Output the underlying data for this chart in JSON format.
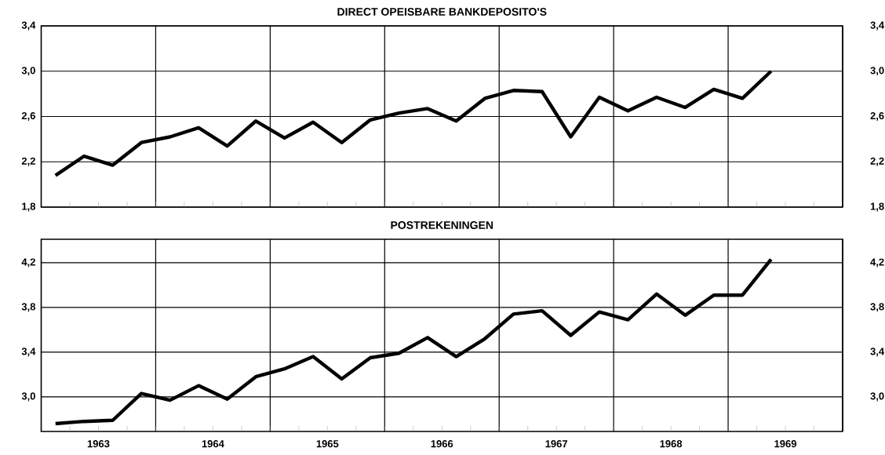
{
  "chart_data": [
    {
      "type": "line",
      "title": "DIRECT  OPEISBARE  BANKDEPOSITO'S",
      "grid": true,
      "tick_labels": "y",
      "x": [
        1963.125,
        1963.375,
        1963.625,
        1963.875,
        1964.125,
        1964.375,
        1964.625,
        1964.875,
        1965.125,
        1965.375,
        1965.625,
        1965.875,
        1966.125,
        1966.375,
        1966.625,
        1966.875,
        1967.125,
        1967.375,
        1967.625,
        1967.875,
        1968.125,
        1968.375,
        1968.625,
        1968.875,
        1969.125,
        1969.375
      ],
      "series": [
        {
          "color": "#000000",
          "values": [
            2.08,
            2.25,
            2.17,
            2.37,
            2.42,
            2.5,
            2.34,
            2.56,
            2.41,
            2.55,
            2.37,
            2.57,
            2.63,
            2.67,
            2.56,
            2.76,
            2.83,
            2.82,
            2.42,
            2.77,
            2.65,
            2.77,
            2.68,
            2.84,
            2.76,
            3.0
          ]
        }
      ],
      "xlim": [
        1963,
        1970
      ],
      "xticks": [
        {
          "value": 1963.25,
          "label": null
        },
        {
          "value": 1963.5,
          "label": null
        },
        {
          "value": 1963.75,
          "label": null
        },
        {
          "value": 1964,
          "label": null
        },
        {
          "value": 1964.25,
          "label": null
        },
        {
          "value": 1964.5,
          "label": null
        },
        {
          "value": 1964.75,
          "label": null
        },
        {
          "value": 1965,
          "label": null
        },
        {
          "value": 1965.25,
          "label": null
        },
        {
          "value": 1965.5,
          "label": null
        },
        {
          "value": 1965.75,
          "label": null
        },
        {
          "value": 1966,
          "label": null
        },
        {
          "value": 1966.25,
          "label": null
        },
        {
          "value": 1966.5,
          "label": null
        },
        {
          "value": 1966.75,
          "label": null
        },
        {
          "value": 1967,
          "label": null
        },
        {
          "value": 1967.25,
          "label": null
        },
        {
          "value": 1967.5,
          "label": null
        },
        {
          "value": 1967.75,
          "label": null
        },
        {
          "value": 1968,
          "label": null
        },
        {
          "value": 1968.25,
          "label": null
        },
        {
          "value": 1968.5,
          "label": null
        },
        {
          "value": 1968.75,
          "label": null
        },
        {
          "value": 1969,
          "label": null
        },
        {
          "value": 1969.25,
          "label": null
        },
        {
          "value": 1969.5,
          "label": null
        },
        {
          "value": 1969.75,
          "label": null
        }
      ],
      "ylim": [
        1.8,
        3.4
      ],
      "yticks": [
        {
          "value": 1.8,
          "label": "1,8"
        },
        {
          "value": 2.2,
          "label": "2,2"
        },
        {
          "value": 2.6,
          "label": "2,6"
        },
        {
          "value": 3.0,
          "label": "3,0"
        },
        {
          "value": 3.4,
          "label": "3,4"
        }
      ],
      "y2lim": [
        1.8,
        3.4
      ],
      "y2ticks": [
        {
          "value": 1.8,
          "label": "1,8"
        },
        {
          "value": 2.2,
          "label": "2,2"
        },
        {
          "value": 2.6,
          "label": "2,6"
        },
        {
          "value": 3.0,
          "label": "3,0"
        },
        {
          "value": 3.4,
          "label": "3,4"
        }
      ]
    },
    {
      "type": "line",
      "title": "POSTREKENINGEN",
      "grid": true,
      "x": [
        1963.125,
        1963.375,
        1963.625,
        1963.875,
        1964.125,
        1964.375,
        1964.625,
        1964.875,
        1965.125,
        1965.375,
        1965.625,
        1965.875,
        1966.125,
        1966.375,
        1966.625,
        1966.875,
        1967.125,
        1967.375,
        1967.625,
        1967.875,
        1968.125,
        1968.375,
        1968.625,
        1968.875,
        1969.125,
        1969.375
      ],
      "series": [
        {
          "color": "#000000",
          "values": [
            2.76,
            2.78,
            2.79,
            3.03,
            2.97,
            3.1,
            2.98,
            3.18,
            3.25,
            3.36,
            3.16,
            3.35,
            3.39,
            3.53,
            3.36,
            3.52,
            3.74,
            3.77,
            3.55,
            3.76,
            3.69,
            3.92,
            3.73,
            3.91,
            3.91,
            4.23
          ]
        }
      ],
      "xlim": [
        1963,
        1970
      ],
      "xticks": [
        {
          "value": 1963.25,
          "label": null
        },
        {
          "value": 1963.5,
          "label": "1963"
        },
        {
          "value": 1963.75,
          "label": null
        },
        {
          "value": 1964,
          "label": null
        },
        {
          "value": 1964.25,
          "label": null
        },
        {
          "value": 1964.5,
          "label": "1964"
        },
        {
          "value": 1964.75,
          "label": null
        },
        {
          "value": 1965,
          "label": null
        },
        {
          "value": 1965.25,
          "label": null
        },
        {
          "value": 1965.5,
          "label": "1965"
        },
        {
          "value": 1965.75,
          "label": null
        },
        {
          "value": 1966,
          "label": null
        },
        {
          "value": 1966.25,
          "label": null
        },
        {
          "value": 1966.5,
          "label": "1966"
        },
        {
          "value": 1966.75,
          "label": null
        },
        {
          "value": 1967,
          "label": null
        },
        {
          "value": 1967.25,
          "label": null
        },
        {
          "value": 1967.5,
          "label": "1967"
        },
        {
          "value": 1967.75,
          "label": null
        },
        {
          "value": 1968,
          "label": null
        },
        {
          "value": 1968.25,
          "label": null
        },
        {
          "value": 1968.5,
          "label": "1968"
        },
        {
          "value": 1968.75,
          "label": null
        },
        {
          "value": 1969,
          "label": null
        },
        {
          "value": 1969.25,
          "label": null
        },
        {
          "value": 1969.5,
          "label": "1969"
        },
        {
          "value": 1969.75,
          "label": null
        }
      ],
      "ylim": [
        2.69,
        4.41
      ],
      "yticks": [
        {
          "value": 3.0,
          "label": "3,0"
        },
        {
          "value": 3.4,
          "label": "3,4"
        },
        {
          "value": 3.8,
          "label": "3,8"
        },
        {
          "value": 4.2,
          "label": "4,2"
        }
      ],
      "y2lim": [
        2.69,
        4.41
      ],
      "y2ticks": [
        {
          "value": 3.0,
          "label": "3,0"
        },
        {
          "value": 3.4,
          "label": "3,4"
        },
        {
          "value": 3.8,
          "label": "3,8"
        },
        {
          "value": 4.2,
          "label": "4,2"
        }
      ]
    }
  ]
}
